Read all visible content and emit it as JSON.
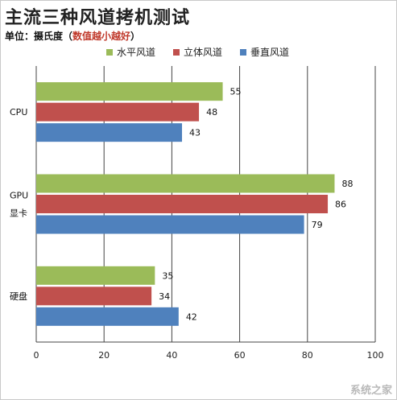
{
  "title": "主流三种风道拷机测试",
  "subtitle_prefix": "单位：摄氏度（",
  "subtitle_emph": "数值越小越好",
  "subtitle_suffix": "）",
  "watermark": "系统之家",
  "chart_data": {
    "type": "bar",
    "orientation": "horizontal",
    "categories": [
      "CPU",
      "GPU 显卡",
      "硬盘"
    ],
    "category_labels": [
      [
        "CPU"
      ],
      [
        "GPU",
        "显卡"
      ],
      [
        "硬盘"
      ]
    ],
    "series": [
      {
        "name": "水平风道",
        "color": "#9bbb59",
        "values": [
          55,
          88,
          35
        ]
      },
      {
        "name": "立体风道",
        "color": "#c0504d",
        "values": [
          48,
          86,
          34
        ]
      },
      {
        "name": "垂直风道",
        "color": "#4f81bd",
        "values": [
          43,
          79,
          42
        ]
      }
    ],
    "xlim": [
      0,
      100
    ],
    "xticks": [
      0,
      20,
      40,
      60,
      80,
      100
    ],
    "grid": true,
    "legend_position": "top"
  }
}
